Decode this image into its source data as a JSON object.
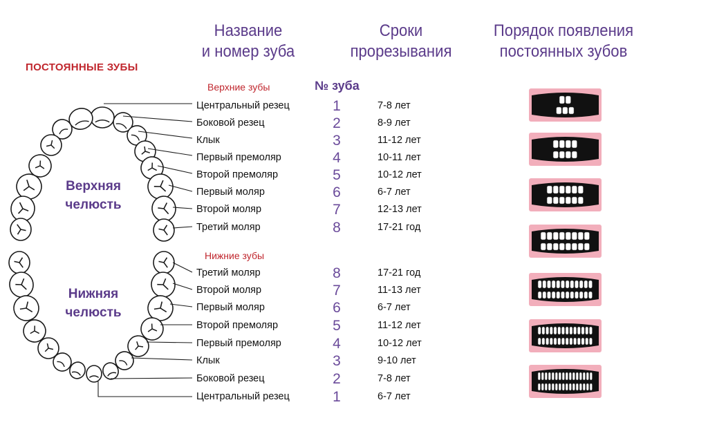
{
  "headers": {
    "name_col": "Название\nи номер зуба",
    "time_col": "Сроки\nпрорезывания",
    "order_col": "Порядок появления\nпостоянных зубов"
  },
  "title": "ПОСТОЯННЫЕ ЗУБЫ",
  "number_header": "№ зуба",
  "upper": {
    "label": "Верхние зубы",
    "jaw": "Верхняя\nчелюсть",
    "rows": [
      {
        "name": "Центральный резец",
        "num": "1",
        "age": "7-8 лет"
      },
      {
        "name": "Боковой резец",
        "num": "2",
        "age": "8-9 лет"
      },
      {
        "name": "Клык",
        "num": "3",
        "age": "11-12 лет"
      },
      {
        "name": "Первый премоляр",
        "num": "4",
        "age": "10-11 лет"
      },
      {
        "name": "Второй премоляр",
        "num": "5",
        "age": "10-12 лет"
      },
      {
        "name": "Первый моляр",
        "num": "6",
        "age": "6-7 лет"
      },
      {
        "name": "Второй моляр",
        "num": "7",
        "age": "12-13 лет"
      },
      {
        "name": "Третий моляр",
        "num": "8",
        "age": "17-21 год"
      }
    ]
  },
  "lower": {
    "label": "Нижние зубы",
    "jaw": "Нижняя\nчелюсть",
    "rows": [
      {
        "name": "Третий моляр",
        "num": "8",
        "age": "17-21 год"
      },
      {
        "name": "Второй моляр",
        "num": "7",
        "age": "11-13 лет"
      },
      {
        "name": "Первый моляр",
        "num": "6",
        "age": "6-7 лет"
      },
      {
        "name": "Второй премоляр",
        "num": "5",
        "age": "11-12 лет"
      },
      {
        "name": "Первый премоляр",
        "num": "4",
        "age": "10-12 лет"
      },
      {
        "name": "Клык",
        "num": "3",
        "age": "9-10 лет"
      },
      {
        "name": "Боковой резец",
        "num": "2",
        "age": "7-8 лет"
      },
      {
        "name": "Центральный резец",
        "num": "1",
        "age": "6-7 лет"
      }
    ]
  },
  "colors": {
    "accent": "#5b3b8a",
    "title_red": "#c0262d",
    "gum": "#f2aebb",
    "mouth": "#111111"
  }
}
